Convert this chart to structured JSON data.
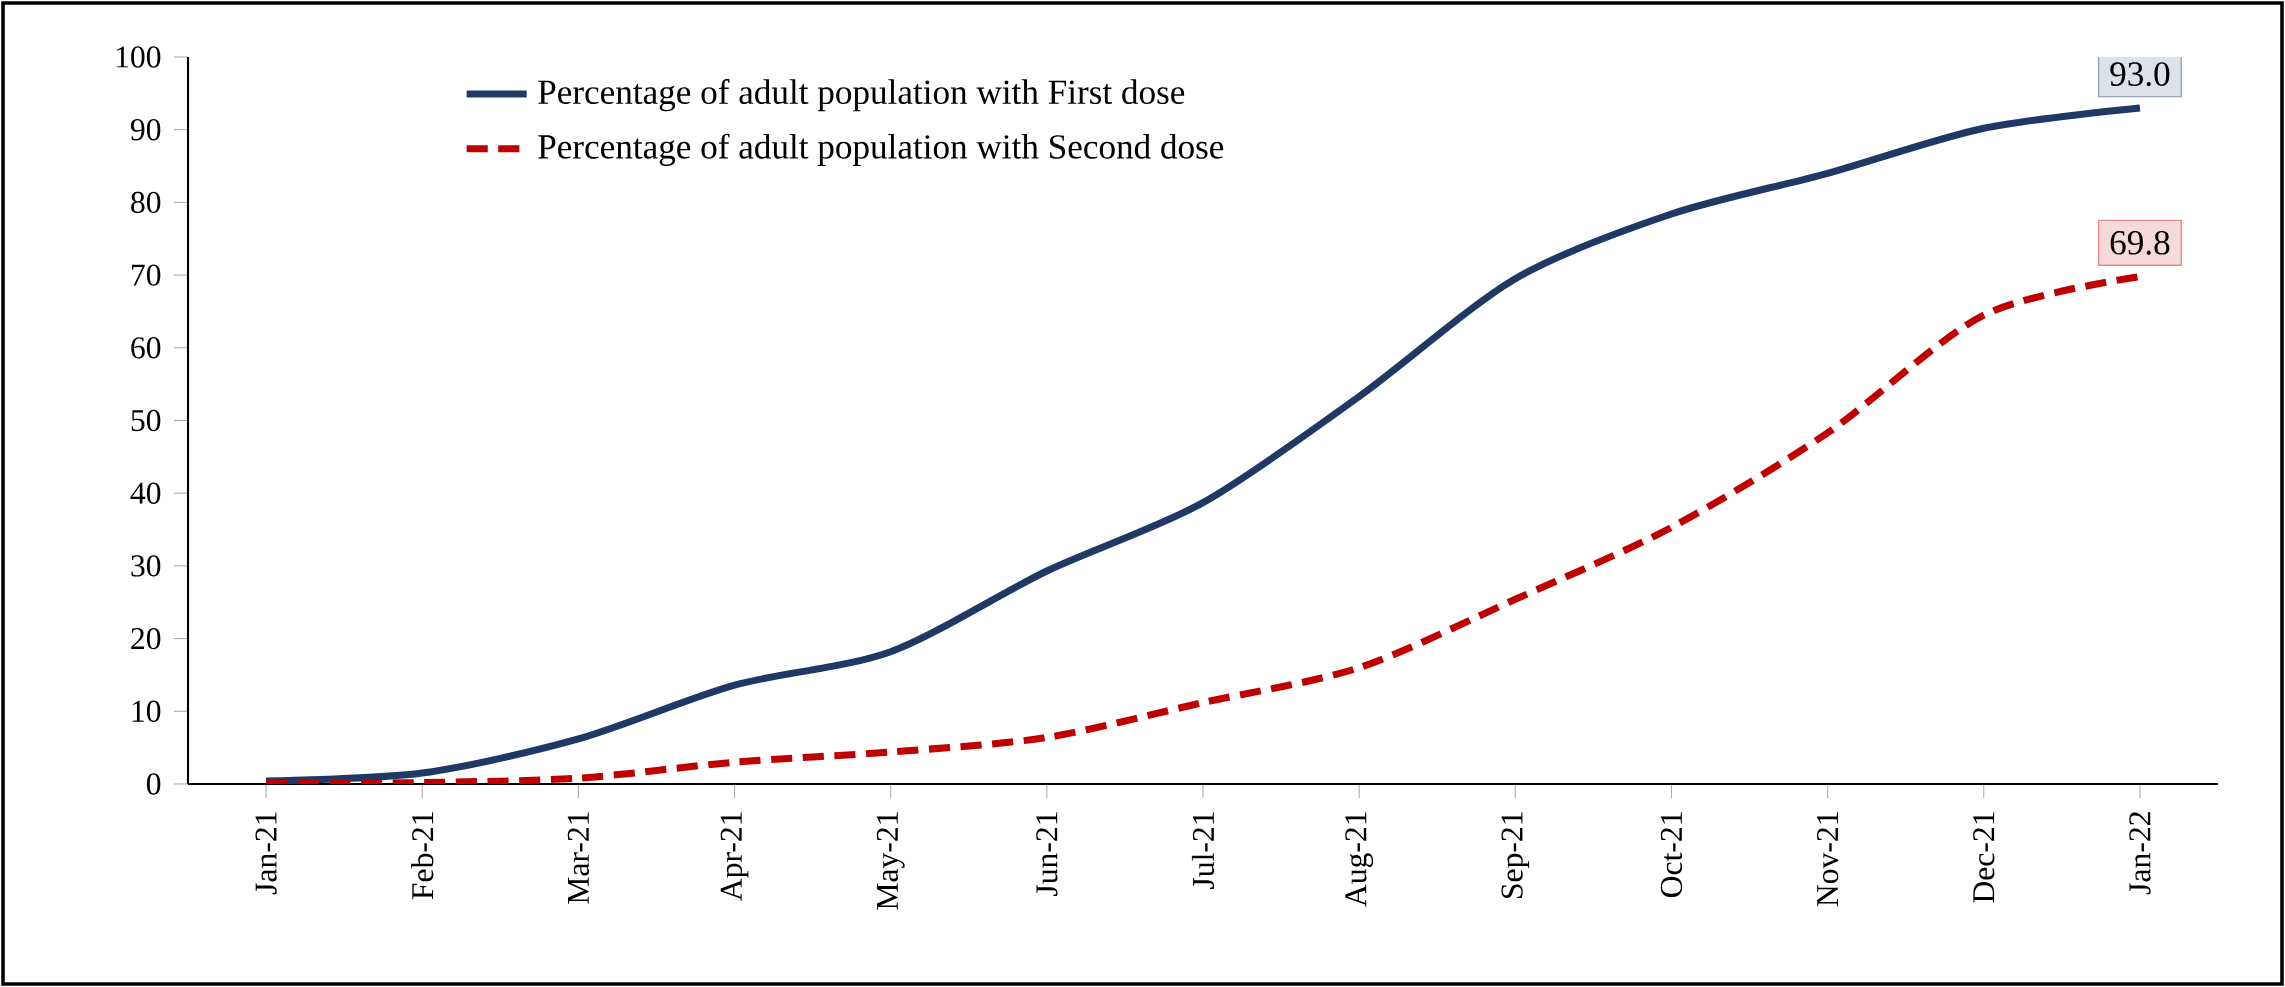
{
  "chart_data": {
    "type": "line",
    "categories": [
      "Jan-21",
      "Feb-21",
      "Mar-21",
      "Apr-21",
      "May-21",
      "Jun-21",
      "Jul-21",
      "Aug-21",
      "Sep-21",
      "Oct-21",
      "Nov-21",
      "Dec-21",
      "Jan-22"
    ],
    "series": [
      {
        "name": "Percentage of adult population with First dose",
        "color": "#1f3864",
        "line_style": "solid",
        "values": [
          0.4,
          1.5,
          6.2,
          13.6,
          18.2,
          29.3,
          38.7,
          53.3,
          69.5,
          78.4,
          84.0,
          90.2,
          93.0
        ],
        "value_labels": [
          null,
          null,
          null,
          null,
          null,
          null,
          null,
          null,
          null,
          null,
          null,
          null,
          "93.0"
        ]
      },
      {
        "name": "Percentage of adult population with Second dose",
        "color": "#c00000",
        "line_style": "dashed",
        "values": [
          0.1,
          0.2,
          0.8,
          3.0,
          4.4,
          6.4,
          11.2,
          16.0,
          25.4,
          35.3,
          48.3,
          64.5,
          69.8
        ],
        "value_labels": [
          null,
          null,
          null,
          null,
          null,
          null,
          null,
          null,
          null,
          null,
          null,
          null,
          "69.8"
        ]
      }
    ],
    "ylim": [
      0,
      100
    ],
    "yticks": [
      0,
      10,
      20,
      30,
      40,
      50,
      60,
      70,
      80,
      90,
      100
    ],
    "grid": false,
    "legend": "top",
    "marker": "none"
  }
}
